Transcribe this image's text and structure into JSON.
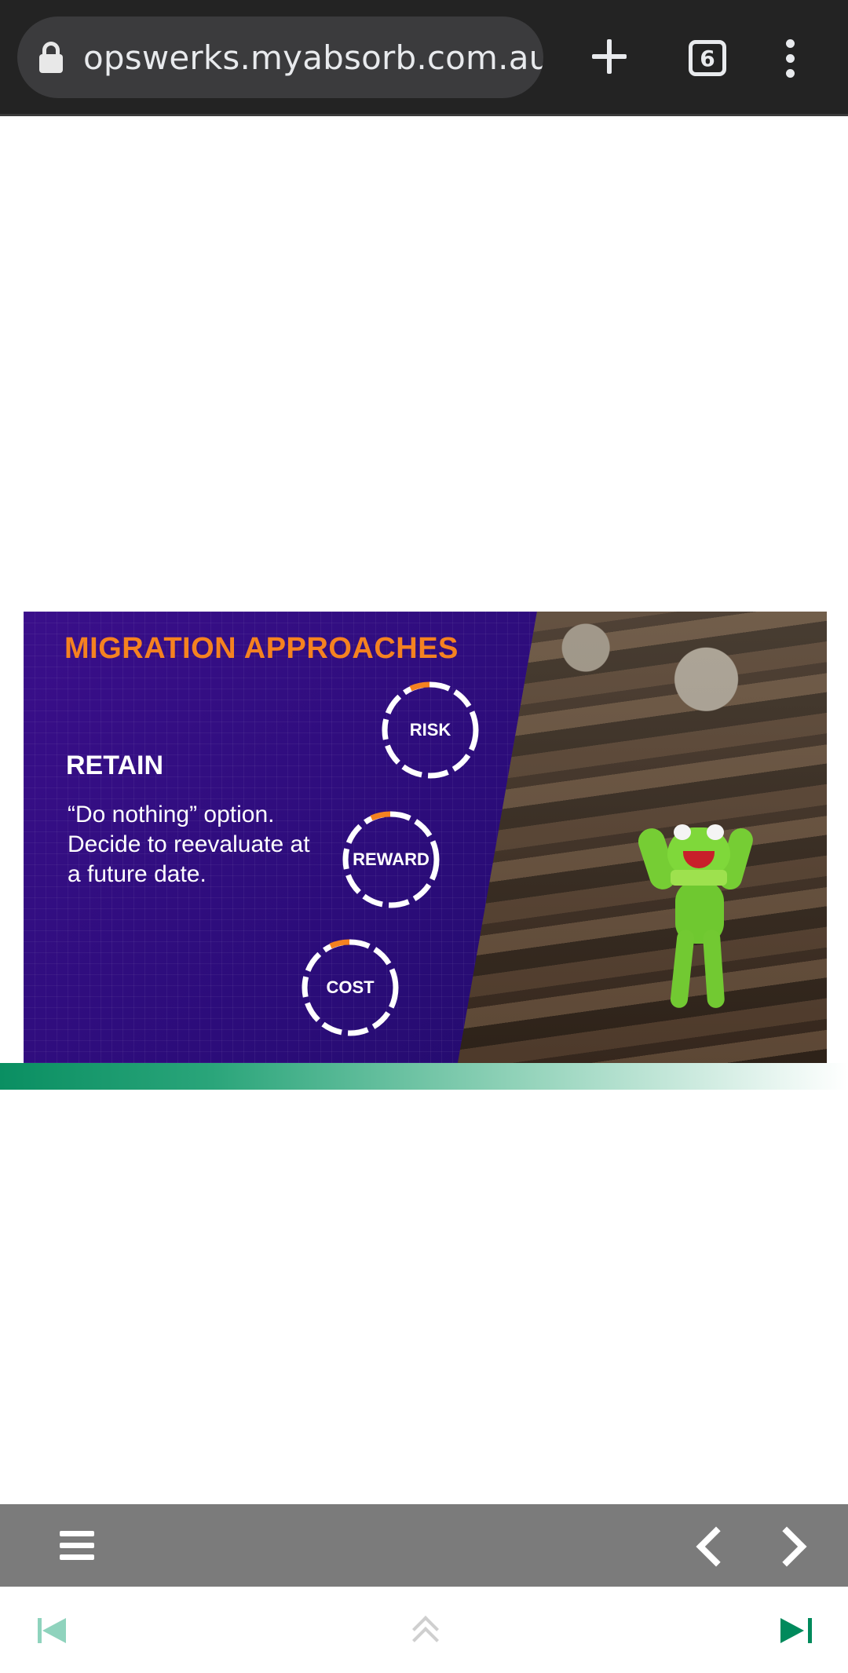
{
  "browser": {
    "url": "opswerks.myabsorb.com.au",
    "tab_count": "6",
    "icons": {
      "lock": "lock-icon",
      "new_tab": "plus-icon",
      "tabs": "tab-switcher-icon",
      "menu": "more-vert-icon"
    }
  },
  "slide": {
    "title": "MIGRATION APPROACHES",
    "heading": "RETAIN",
    "body": "“Do nothing” option. Decide to reevaluate at a future date.",
    "dials": [
      {
        "label": "RISK"
      },
      {
        "label": "REWARD"
      },
      {
        "label": "COST"
      }
    ],
    "colors": {
      "title": "#f58220",
      "background": "#2a0f6e",
      "dial_accent": "#f58220"
    }
  },
  "player": {
    "icons": {
      "menu": "hamburger-menu-icon",
      "previous": "chevron-left-icon",
      "next": "chevron-right-icon",
      "first": "skip-first-icon",
      "collapse": "chevron-up-double-icon",
      "last": "skip-last-icon"
    },
    "colors": {
      "toolbar": "#7b7b7b",
      "accent": "#008a5c"
    }
  }
}
